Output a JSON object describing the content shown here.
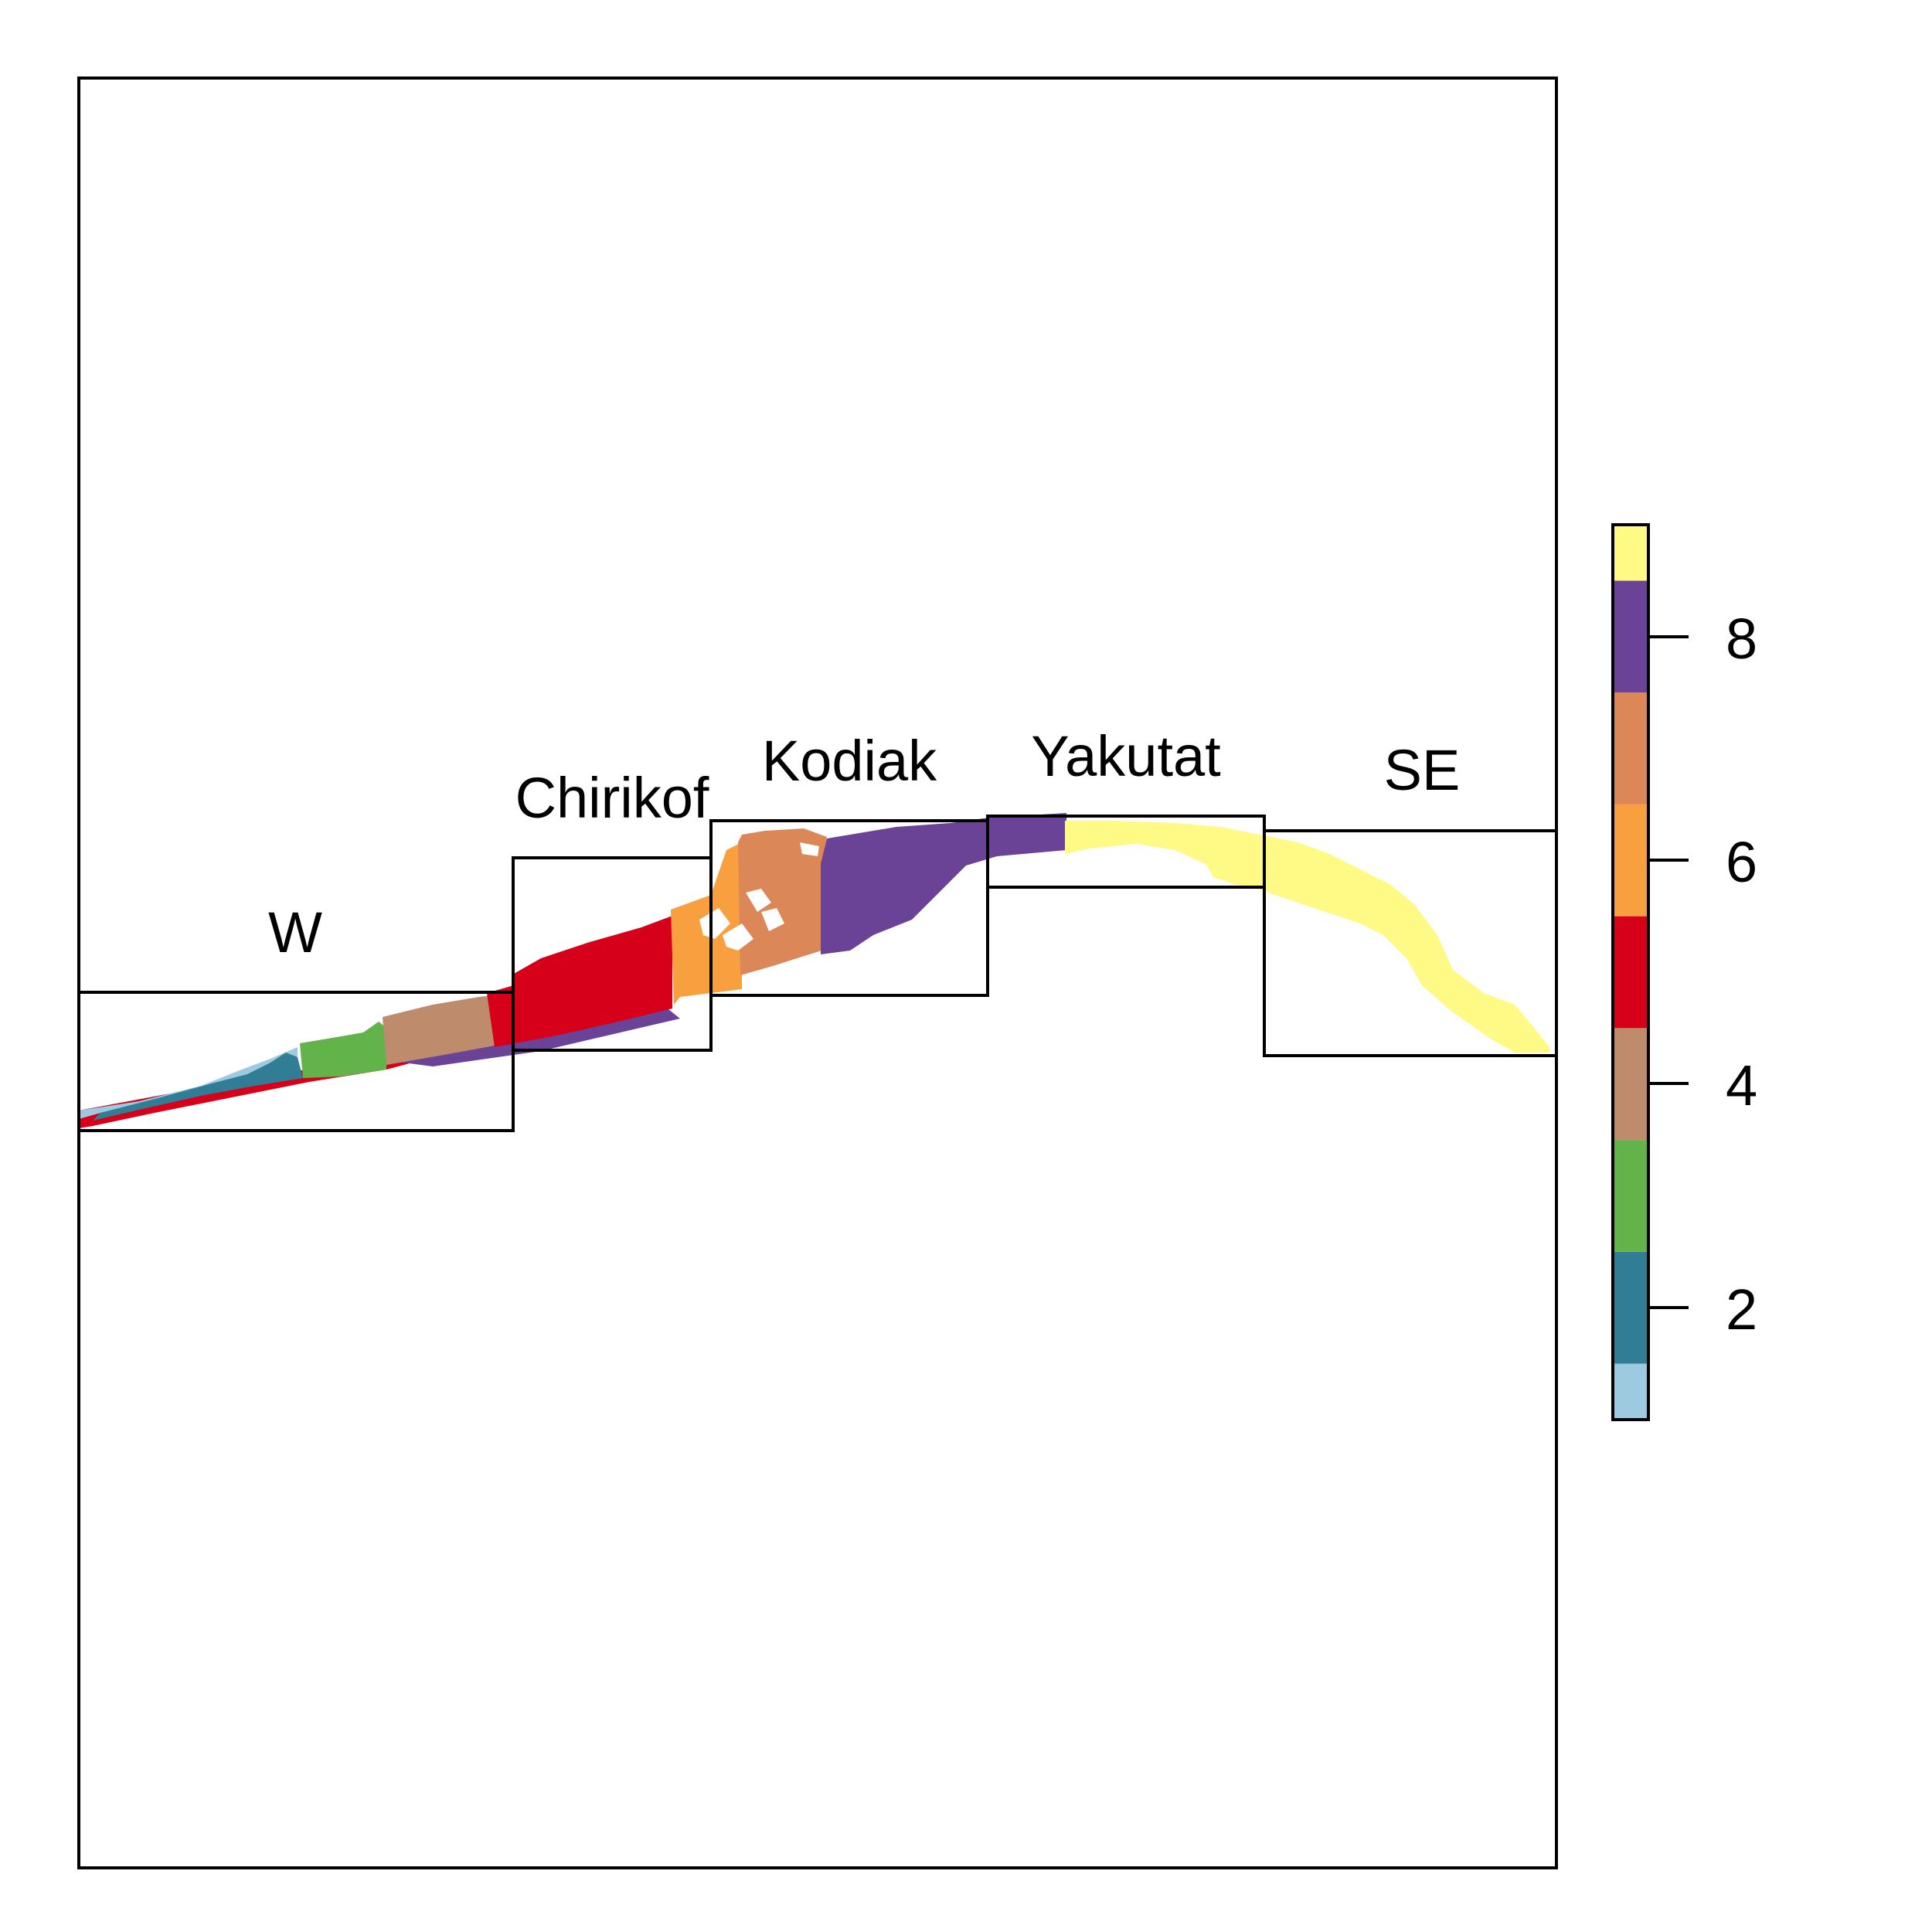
{
  "chart_data": {
    "type": "map",
    "title": "",
    "regions": [
      {
        "label": "W"
      },
      {
        "label": "Chirikof"
      },
      {
        "label": "Kodiak"
      },
      {
        "label": "Yakutat"
      },
      {
        "label": "SE"
      }
    ],
    "legend": {
      "placement": "right",
      "range": [
        1,
        9
      ],
      "ticks": [
        "2",
        "4",
        "6",
        "8"
      ],
      "classes": [
        {
          "value": 1,
          "color": "#9ecae1"
        },
        {
          "value": 2,
          "color": "#317d96"
        },
        {
          "value": 3,
          "color": "#62b34a"
        },
        {
          "value": 4,
          "color": "#be8c6d"
        },
        {
          "value": 5,
          "color": "#d7001a"
        },
        {
          "value": 6,
          "color": "#f8a040"
        },
        {
          "value": 7,
          "color": "#dc8757"
        },
        {
          "value": 8,
          "color": "#6b4396"
        },
        {
          "value": 9,
          "color": "#fffa85"
        }
      ]
    },
    "grid": false
  }
}
